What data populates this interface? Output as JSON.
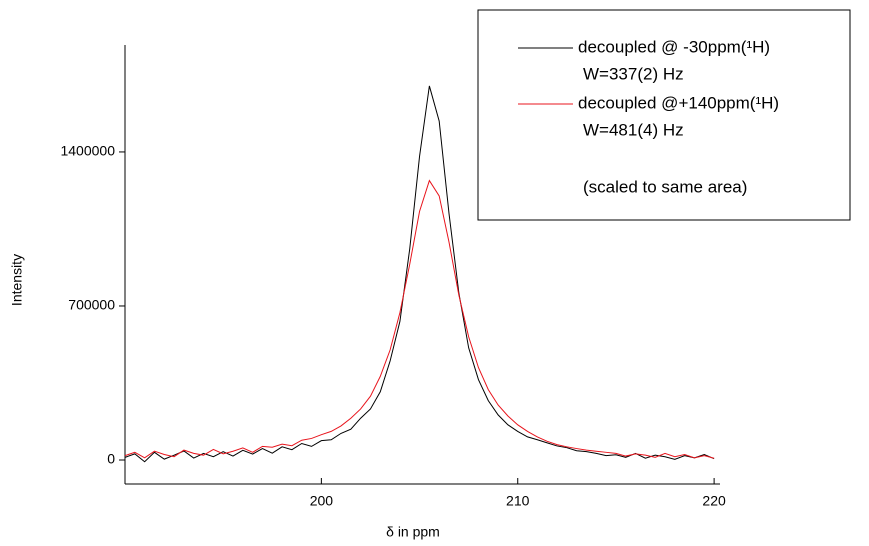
{
  "chart_data": {
    "type": "line",
    "x_label": "δ in ppm",
    "y_label": "Intensity",
    "x": [
      190,
      190.5,
      191,
      191.5,
      192,
      192.5,
      193,
      193.5,
      194,
      194.5,
      195,
      195.5,
      196,
      196.5,
      197,
      197.5,
      198,
      198.5,
      199,
      199.5,
      200,
      200.5,
      201,
      201.5,
      202,
      202.5,
      203,
      203.5,
      204,
      204.5,
      205,
      205.5,
      206,
      206.5,
      207,
      207.5,
      208,
      208.5,
      209,
      209.5,
      210,
      210.5,
      211,
      211.5,
      212,
      212.5,
      213,
      213.5,
      214,
      214.5,
      215,
      215.5,
      216,
      216.5,
      217,
      217.5,
      218,
      218.5,
      219,
      219.5,
      220
    ],
    "series": [
      {
        "name": "decoupled @   -30ppm(¹H)",
        "note": "W=337(2) Hz",
        "color": "#000000",
        "values": [
          12000,
          28000,
          -8000,
          35000,
          4000,
          22000,
          41000,
          9000,
          30000,
          15000,
          38000,
          18000,
          44000,
          27000,
          52000,
          31000,
          60000,
          47000,
          75000,
          62000,
          88000,
          92000,
          121000,
          140000,
          190000,
          232000,
          310000,
          450000,
          630000,
          960000,
          1380000,
          1700000,
          1540000,
          1120000,
          760000,
          510000,
          365000,
          270000,
          205000,
          160000,
          130000,
          105000,
          92000,
          78000,
          64000,
          56000,
          42000,
          38000,
          30000,
          20000,
          24000,
          12000,
          30000,
          8000,
          22000,
          15000,
          3000,
          20000,
          10000,
          25000,
          6000
        ]
      },
      {
        "name": "decoupled @+140ppm(¹H)",
        "note": "W=481(4) Hz",
        "color": "#e8141c",
        "values": [
          20000,
          35000,
          10000,
          40000,
          25000,
          15000,
          45000,
          30000,
          22000,
          48000,
          28000,
          40000,
          55000,
          35000,
          62000,
          58000,
          72000,
          65000,
          90000,
          98000,
          115000,
          130000,
          155000,
          190000,
          232000,
          290000,
          380000,
          500000,
          670000,
          890000,
          1130000,
          1270000,
          1200000,
          990000,
          750000,
          560000,
          420000,
          320000,
          250000,
          200000,
          160000,
          130000,
          105000,
          85000,
          70000,
          60000,
          52000,
          45000,
          40000,
          35000,
          30000,
          18000,
          28000,
          22000,
          12000,
          30000,
          15000,
          25000,
          10000,
          20000,
          8000
        ]
      }
    ],
    "annotation": "(scaled to same area)",
    "xlim": [
      190,
      220.3
    ],
    "xticks": [
      200,
      210,
      220
    ],
    "ylim": [
      -109000,
      1886000
    ],
    "yticks": [
      0,
      700000,
      1400000
    ]
  }
}
